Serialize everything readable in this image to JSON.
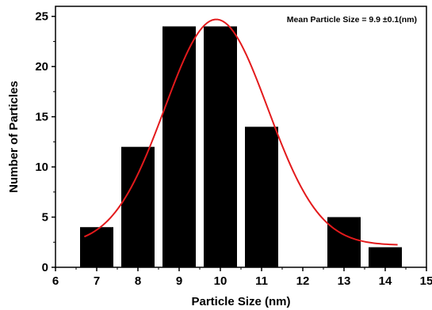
{
  "chart_data": {
    "type": "bar",
    "xlabel": "Particle Size (nm)",
    "ylabel": "Number of Particles",
    "annotation": "Mean Particle Size = 9.9 ±0.1(nm)",
    "xlim": [
      6,
      15
    ],
    "ylim": [
      0,
      26
    ],
    "x_ticks": [
      6,
      7,
      8,
      9,
      10,
      11,
      12,
      13,
      14,
      15
    ],
    "y_ticks": [
      0,
      5,
      10,
      15,
      20,
      25
    ],
    "bin_width": 1,
    "bars": [
      {
        "x": 7,
        "value": 4
      },
      {
        "x": 8,
        "value": 12
      },
      {
        "x": 9,
        "value": 24
      },
      {
        "x": 10,
        "value": 24
      },
      {
        "x": 11,
        "value": 14
      },
      {
        "x": 13,
        "value": 5
      },
      {
        "x": 14,
        "value": 2
      }
    ],
    "bars_note": "",
    "fit_curve": {
      "type": "gaussian",
      "x_range": [
        6.7,
        14.3
      ],
      "mean": 9.9,
      "amplitude": 22.5,
      "sigma": 1.25,
      "offset": 2.2
    },
    "colors": {
      "bar": "#000000",
      "fit_line": "#e31a1c",
      "axis": "#000000"
    }
  }
}
